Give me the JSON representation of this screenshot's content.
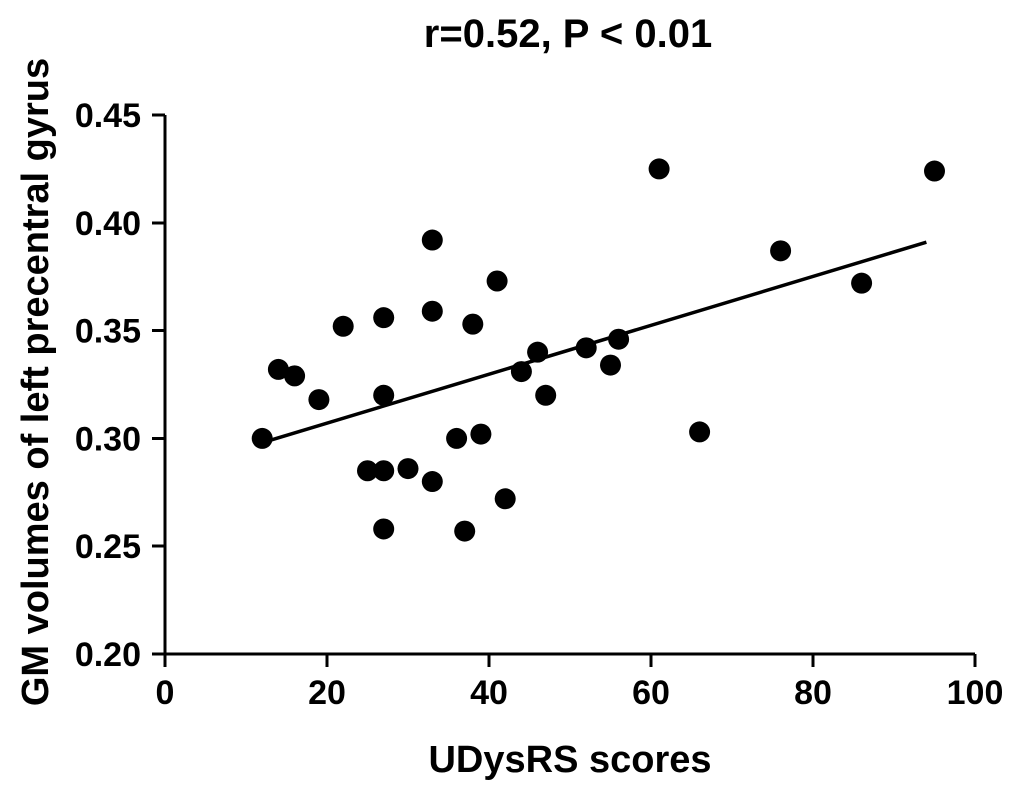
{
  "chart_data": {
    "type": "scatter",
    "title": "r=0.52, P < 0.01",
    "xlabel": "UDysRS scores",
    "ylabel": "GM volumes of left precentral gyrus",
    "xlim": [
      0,
      100
    ],
    "ylim": [
      0.2,
      0.45
    ],
    "x_ticks": [
      0,
      20,
      40,
      60,
      80,
      100
    ],
    "y_ticks": [
      0.2,
      0.25,
      0.3,
      0.35,
      0.4,
      0.45
    ],
    "x_tick_labels": [
      "0",
      "20",
      "40",
      "60",
      "80",
      "100"
    ],
    "y_tick_labels": [
      "0.20",
      "0.25",
      "0.30",
      "0.35",
      "0.40",
      "0.45"
    ],
    "grid": false,
    "legend": "none",
    "point_color": "#000000",
    "series": [
      {
        "points": [
          {
            "x": 12,
            "y": 0.3
          },
          {
            "x": 14,
            "y": 0.332
          },
          {
            "x": 16,
            "y": 0.329
          },
          {
            "x": 19,
            "y": 0.318
          },
          {
            "x": 22,
            "y": 0.352
          },
          {
            "x": 25,
            "y": 0.285
          },
          {
            "x": 27,
            "y": 0.356
          },
          {
            "x": 27,
            "y": 0.32
          },
          {
            "x": 27,
            "y": 0.285
          },
          {
            "x": 27,
            "y": 0.258
          },
          {
            "x": 30,
            "y": 0.286
          },
          {
            "x": 33,
            "y": 0.392
          },
          {
            "x": 33,
            "y": 0.359
          },
          {
            "x": 33,
            "y": 0.28
          },
          {
            "x": 36,
            "y": 0.3
          },
          {
            "x": 37,
            "y": 0.257
          },
          {
            "x": 38,
            "y": 0.353
          },
          {
            "x": 39,
            "y": 0.302
          },
          {
            "x": 41,
            "y": 0.373
          },
          {
            "x": 42,
            "y": 0.272
          },
          {
            "x": 44,
            "y": 0.331
          },
          {
            "x": 46,
            "y": 0.34
          },
          {
            "x": 47,
            "y": 0.32
          },
          {
            "x": 52,
            "y": 0.342
          },
          {
            "x": 55,
            "y": 0.334
          },
          {
            "x": 56,
            "y": 0.346
          },
          {
            "x": 61,
            "y": 0.425
          },
          {
            "x": 66,
            "y": 0.303
          },
          {
            "x": 76,
            "y": 0.387
          },
          {
            "x": 86,
            "y": 0.372
          },
          {
            "x": 95,
            "y": 0.424
          }
        ]
      }
    ],
    "fit_line": {
      "x": [
        12,
        94
      ],
      "y": [
        0.298,
        0.391
      ]
    }
  }
}
